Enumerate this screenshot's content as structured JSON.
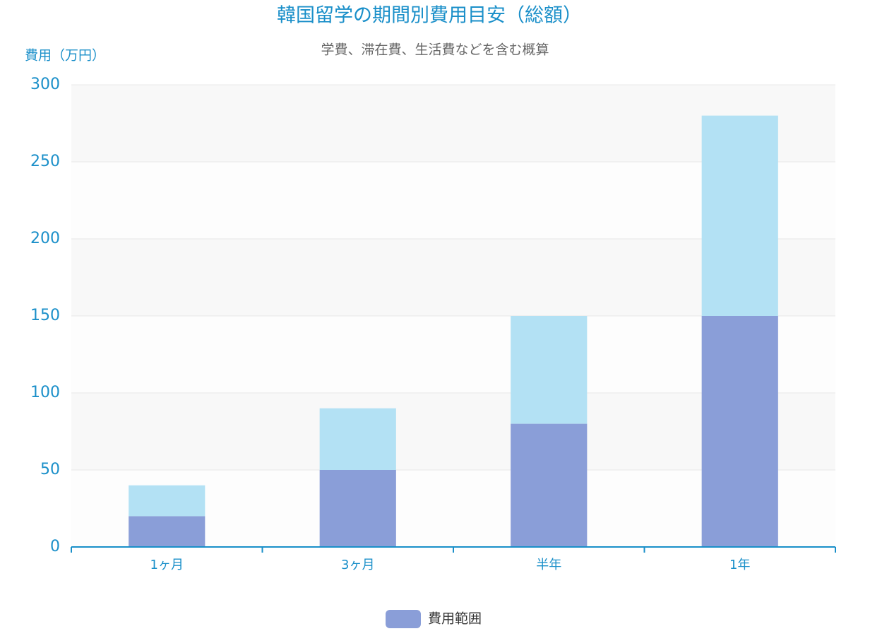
{
  "chart_data": {
    "type": "stacked-bar",
    "title": "韓国留学の期間別費用目安（総額）",
    "subtitle": "学費、滞在費、生活費などを含む概算",
    "y_axis_label": "費用（万円）",
    "categories": [
      "1ヶ月",
      "3ヶ月",
      "半年",
      "1年"
    ],
    "series": [
      {
        "name": "費用範囲",
        "color": "#8a9ed8",
        "values": [
          20,
          50,
          80,
          150
        ]
      },
      {
        "color": "#b3e1f4",
        "values": [
          20,
          40,
          70,
          130
        ]
      }
    ],
    "ylim": [
      0,
      300
    ],
    "yticks": [
      0,
      50,
      100,
      150,
      200,
      250,
      300
    ],
    "grid": true,
    "legend": "bottom"
  }
}
